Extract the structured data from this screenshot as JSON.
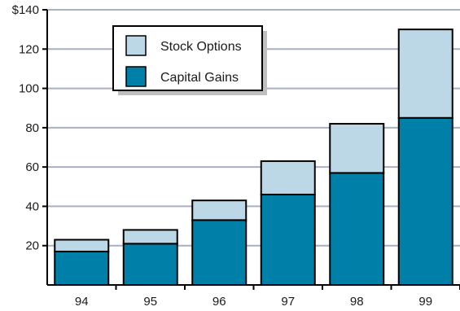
{
  "chart_data": {
    "type": "bar",
    "stacked": true,
    "categories": [
      "94",
      "95",
      "96",
      "97",
      "98",
      "99"
    ],
    "series": [
      {
        "name": "Capital Gains",
        "values": [
          17,
          21,
          33,
          46,
          57,
          85
        ],
        "color": "#0080a8"
      },
      {
        "name": "Stock Options",
        "values": [
          6,
          7,
          10,
          17,
          25,
          45
        ],
        "color": "#bcd8e6"
      }
    ],
    "ylim": [
      0,
      140
    ],
    "yticks": [
      20,
      40,
      60,
      80,
      100,
      120,
      140
    ],
    "ytick_labels": [
      "20",
      "40",
      "60",
      "80",
      "100",
      "120",
      "$140"
    ],
    "grid": true,
    "legend_position": "top-left",
    "title": "",
    "xlabel": "",
    "ylabel": ""
  },
  "legend": {
    "items": [
      {
        "label": "Stock Options",
        "color": "#bcd8e6"
      },
      {
        "label": "Capital Gains",
        "color": "#0080a8"
      }
    ]
  }
}
